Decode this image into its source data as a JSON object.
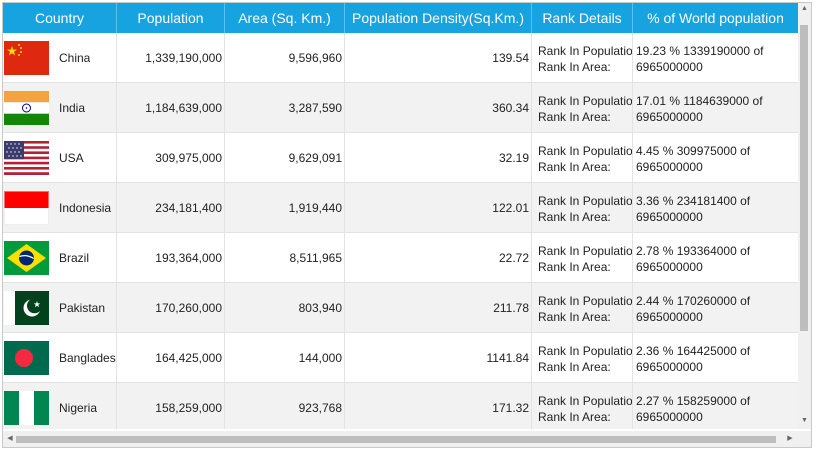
{
  "columns": [
    "Country",
    "Population",
    "Area (Sq. Km.)",
    "Population Density(Sq.Km.)",
    "Rank Details",
    "% of World population"
  ],
  "rows": [
    {
      "flag": "china-flag-icon",
      "country": "China",
      "population": "1,339,190,000",
      "area": "9,596,960",
      "density": "139.54",
      "rank1": "Rank In Population:",
      "rank2": "Rank In Area:",
      "pct": "19.23 % 1339190000 of 6965000000"
    },
    {
      "flag": "india-flag-icon",
      "country": "India",
      "population": "1,184,639,000",
      "area": "3,287,590",
      "density": "360.34",
      "rank1": "Rank In Population:",
      "rank2": "Rank In Area:",
      "pct": "17.01 % 1184639000 of 6965000000"
    },
    {
      "flag": "usa-flag-icon",
      "country": "USA",
      "population": "309,975,000",
      "area": "9,629,091",
      "density": "32.19",
      "rank1": "Rank In Population:",
      "rank2": "Rank In Area:",
      "pct": "4.45 % 309975000 of 6965000000"
    },
    {
      "flag": "indonesia-flag-icon",
      "country": "Indonesia",
      "population": "234,181,400",
      "area": "1,919,440",
      "density": "122.01",
      "rank1": "Rank In Population:",
      "rank2": "Rank In Area:",
      "pct": "3.36 % 234181400 of 6965000000"
    },
    {
      "flag": "brazil-flag-icon",
      "country": "Brazil",
      "population": "193,364,000",
      "area": "8,511,965",
      "density": "22.72",
      "rank1": "Rank In Population:",
      "rank2": "Rank In Area:",
      "pct": "2.78 % 193364000 of 6965000000"
    },
    {
      "flag": "pakistan-flag-icon",
      "country": "Pakistan",
      "population": "170,260,000",
      "area": "803,940",
      "density": "211.78",
      "rank1": "Rank In Population:",
      "rank2": "Rank In Area:",
      "pct": "2.44 % 170260000 of 6965000000"
    },
    {
      "flag": "bangladesh-flag-icon",
      "country": "Bangladesh",
      "population": "164,425,000",
      "area": "144,000",
      "density": "1141.84",
      "rank1": "Rank In Population:",
      "rank2": "Rank In Area:",
      "pct": "2.36 % 164425000 of 6965000000"
    },
    {
      "flag": "nigeria-flag-icon",
      "country": "Nigeria",
      "population": "158,259,000",
      "area": "923,768",
      "density": "171.32",
      "rank1": "Rank In Population:",
      "rank2": "Rank In Area:",
      "pct": "2.27 % 158259000 of 6965000000"
    }
  ],
  "colors": {
    "header": "#17a2e0",
    "alt_row": "#f2f2f2"
  }
}
